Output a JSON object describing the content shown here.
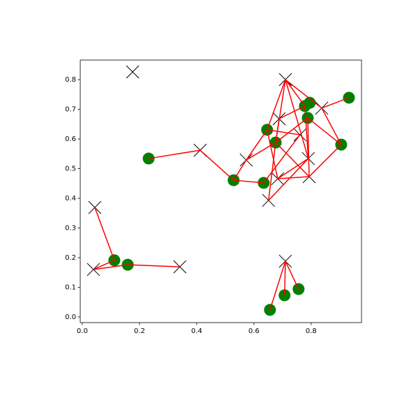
{
  "chart_data": {
    "type": "scatter",
    "xlim": [
      -0.007,
      0.976
    ],
    "ylim": [
      -0.019,
      0.866
    ],
    "xticks": [
      {
        "value": 0,
        "label": "0.0"
      },
      0.2,
      0.4,
      0.6,
      0.8
    ],
    "yticks": [
      {
        "value": 0,
        "label": "0.0"
      },
      0.1,
      0.2,
      0.3,
      0.4,
      0.5,
      0.6,
      0.7,
      0.8
    ],
    "series": [
      {
        "marker": "circle",
        "color": "green",
        "x": [
          0.232,
          0.529,
          0.634,
          0.646,
          0.676,
          0.778,
          0.795,
          0.788,
          0.932,
          0.905,
          0.112,
          0.159,
          0.656,
          0.707,
          0.756
        ],
        "y": [
          0.534,
          0.461,
          0.452,
          0.631,
          0.588,
          0.711,
          0.722,
          0.671,
          0.739,
          0.581,
          0.191,
          0.176,
          0.024,
          0.073,
          0.094
        ]
      },
      {
        "marker": "x",
        "color": "black",
        "x": [
          0.176,
          0.71,
          0.837,
          0.688,
          0.761,
          0.79,
          0.573,
          0.412,
          0.793,
          0.683,
          0.651,
          0.044,
          0.039,
          0.341,
          0.71
        ],
        "y": [
          0.826,
          0.8,
          0.704,
          0.668,
          0.614,
          0.534,
          0.529,
          0.562,
          0.473,
          0.466,
          0.393,
          0.369,
          0.16,
          0.169,
          0.188
        ]
      }
    ],
    "line_color": "red",
    "lines": [
      {
        "x": [
          0.232,
          0.412,
          0.529,
          0.634
        ],
        "y": [
          0.534,
          0.562,
          0.461,
          0.452
        ]
      },
      {
        "x": [
          0.529,
          0.573,
          0.646
        ],
        "y": [
          0.461,
          0.529,
          0.631
        ]
      },
      {
        "x": [
          0.044,
          0.112,
          0.039,
          0.159,
          0.341
        ],
        "y": [
          0.369,
          0.191,
          0.16,
          0.176,
          0.169
        ]
      },
      {
        "x": [
          0.656,
          0.71,
          0.707
        ],
        "y": [
          0.024,
          0.188,
          0.073
        ]
      },
      {
        "x": [
          0.71,
          0.756
        ],
        "y": [
          0.188,
          0.094
        ]
      },
      {
        "x": [
          0.646,
          0.71,
          0.778
        ],
        "y": [
          0.631,
          0.8,
          0.711
        ]
      },
      {
        "x": [
          0.71,
          0.837,
          0.932
        ],
        "y": [
          0.8,
          0.704,
          0.739
        ]
      },
      {
        "x": [
          0.837,
          0.905,
          0.793
        ],
        "y": [
          0.704,
          0.581,
          0.473
        ]
      },
      {
        "x": [
          0.905,
          0.788
        ],
        "y": [
          0.581,
          0.671
        ]
      },
      {
        "x": [
          0.71,
          0.676
        ],
        "y": [
          0.8,
          0.588
        ]
      },
      {
        "x": [
          0.71,
          0.79
        ],
        "y": [
          0.8,
          0.534
        ]
      },
      {
        "x": [
          0.688,
          0.778
        ],
        "y": [
          0.668,
          0.711
        ]
      },
      {
        "x": [
          0.688,
          0.676
        ],
        "y": [
          0.668,
          0.588
        ]
      },
      {
        "x": [
          0.646,
          0.761
        ],
        "y": [
          0.631,
          0.614
        ]
      },
      {
        "x": [
          0.646,
          0.683
        ],
        "y": [
          0.631,
          0.466
        ]
      },
      {
        "x": [
          0.573,
          0.676,
          0.793
        ],
        "y": [
          0.529,
          0.588,
          0.473
        ]
      },
      {
        "x": [
          0.676,
          0.788
        ],
        "y": [
          0.588,
          0.671
        ]
      },
      {
        "x": [
          0.651,
          0.676
        ],
        "y": [
          0.393,
          0.588
        ]
      },
      {
        "x": [
          0.651,
          0.79
        ],
        "y": [
          0.393,
          0.534
        ]
      },
      {
        "x": [
          0.634,
          0.761
        ],
        "y": [
          0.452,
          0.614
        ]
      },
      {
        "x": [
          0.683,
          0.79
        ],
        "y": [
          0.466,
          0.534
        ]
      },
      {
        "x": [
          0.793,
          0.683
        ],
        "y": [
          0.473,
          0.466
        ]
      },
      {
        "x": [
          0.778,
          0.79
        ],
        "y": [
          0.711,
          0.534
        ]
      },
      {
        "x": [
          0.788,
          0.793
        ],
        "y": [
          0.671,
          0.473
        ]
      }
    ]
  }
}
